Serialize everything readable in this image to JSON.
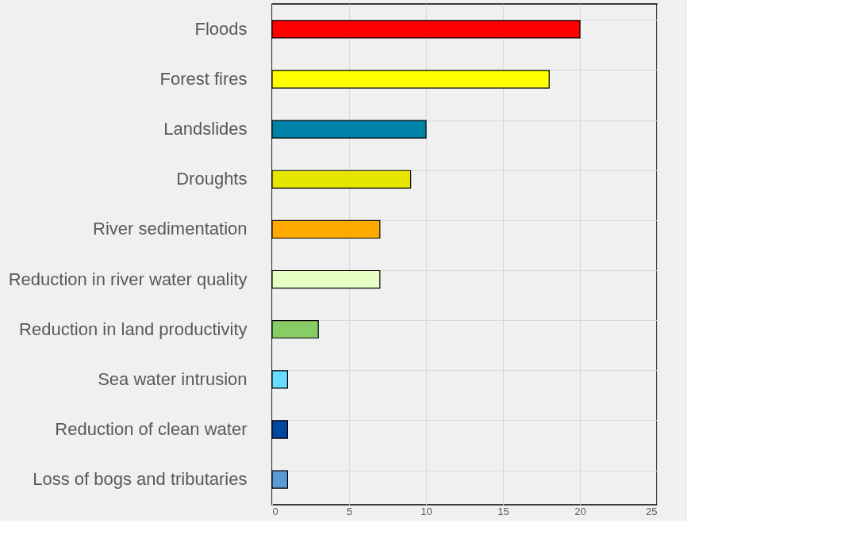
{
  "chart_data": {
    "type": "bar",
    "orientation": "horizontal",
    "categories": [
      "Floods",
      "Forest fires",
      "Landslides",
      "Droughts",
      "River sedimentation",
      "Reduction in river water quality",
      "Reduction in land productivity",
      "Sea water intrusion",
      "Reduction of clean water",
      "Loss of bogs and tributaries"
    ],
    "values": [
      20,
      18,
      10,
      9,
      7,
      7,
      3,
      1,
      1,
      1
    ],
    "colors": [
      "#ff0000",
      "#ffff00",
      "#0083a8",
      "#e6e600",
      "#ffaa00",
      "#e5ffc4",
      "#88cc66",
      "#66ddff",
      "#0047a0",
      "#5b9bd5"
    ],
    "xlim": [
      0,
      25
    ],
    "xticks": [
      0,
      5,
      10,
      15,
      20,
      25
    ],
    "grid": true
  }
}
